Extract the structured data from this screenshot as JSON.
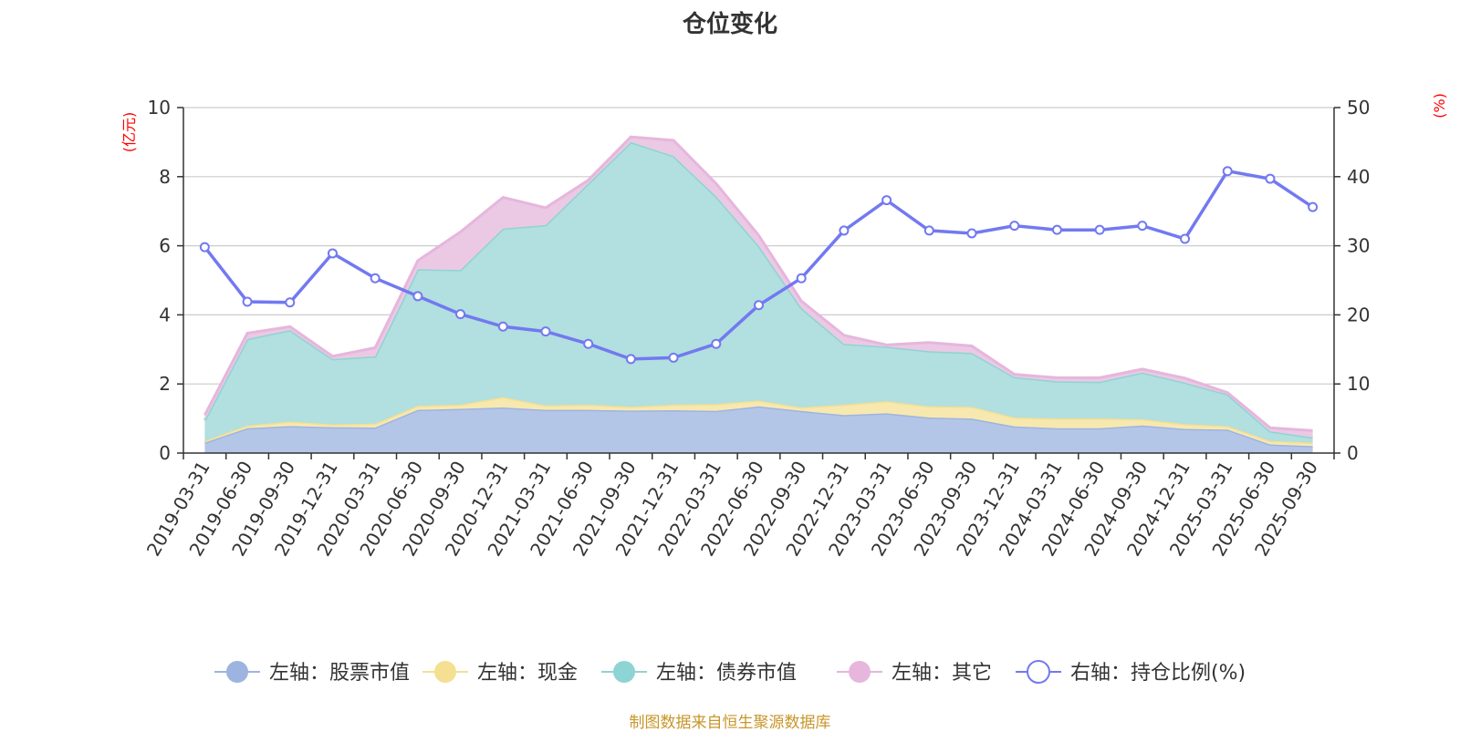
{
  "chart_data": {
    "type": "area",
    "title": "仓位变化",
    "left_axis_unit": "(亿元)",
    "right_axis_unit": "(%)",
    "left_ylim": [
      0,
      10
    ],
    "left_ticks": [
      "0",
      "2",
      "4",
      "6",
      "8",
      "10"
    ],
    "right_ylim": [
      0,
      50
    ],
    "right_ticks": [
      "0",
      "10",
      "20",
      "30",
      "40",
      "50"
    ],
    "grid": true,
    "legend_position": "bottom",
    "categories": [
      "2019-03-31",
      "2019-06-30",
      "2019-09-30",
      "2019-12-31",
      "2020-03-31",
      "2020-06-30",
      "2020-09-30",
      "2020-12-31",
      "2021-03-31",
      "2021-06-30",
      "2021-09-30",
      "2021-12-31",
      "2022-03-31",
      "2022-06-30",
      "2022-09-30",
      "2022-12-31",
      "2023-03-31",
      "2023-06-30",
      "2023-09-30",
      "2023-12-31",
      "2024-03-31",
      "2024-06-30",
      "2024-09-30",
      "2024-12-31",
      "2025-03-31",
      "2025-06-30",
      "2025-09-30"
    ],
    "series": [
      {
        "name": "左轴：股票市值",
        "axis": "left",
        "stacked": true,
        "color": "#9db4e0",
        "fill": "#b4c6e8",
        "values": [
          0.3,
          0.72,
          0.78,
          0.75,
          0.74,
          1.25,
          1.28,
          1.32,
          1.25,
          1.25,
          1.23,
          1.24,
          1.22,
          1.35,
          1.22,
          1.1,
          1.15,
          1.03,
          1.0,
          0.77,
          0.72,
          0.72,
          0.8,
          0.7,
          0.68,
          0.25,
          0.2
        ]
      },
      {
        "name": "左轴：现金",
        "axis": "left",
        "stacked": true,
        "color": "#f5df91",
        "fill": "#f7e8b0",
        "values": [
          0.05,
          0.08,
          0.13,
          0.08,
          0.11,
          0.12,
          0.12,
          0.3,
          0.13,
          0.15,
          0.11,
          0.16,
          0.2,
          0.17,
          0.1,
          0.3,
          0.35,
          0.32,
          0.34,
          0.26,
          0.28,
          0.28,
          0.18,
          0.14,
          0.1,
          0.1,
          0.1
        ]
      },
      {
        "name": "左轴：债券市值",
        "axis": "left",
        "stacked": true,
        "color": "#8ed4d4",
        "fill": "#b2dfdf",
        "values": [
          0.6,
          2.5,
          2.65,
          1.89,
          1.95,
          3.95,
          3.9,
          4.88,
          5.22,
          6.4,
          7.66,
          7.2,
          6.01,
          4.48,
          2.88,
          1.76,
          1.58,
          1.6,
          1.56,
          1.17,
          1.08,
          1.06,
          1.35,
          1.2,
          0.92,
          0.28,
          0.15
        ]
      },
      {
        "name": "左轴：其它",
        "axis": "left",
        "stacked": true,
        "color": "#e6b6dc",
        "fill": "#ebc9e4",
        "values": [
          0.15,
          0.17,
          0.1,
          0.08,
          0.25,
          0.25,
          1.1,
          0.9,
          0.5,
          0.1,
          0.15,
          0.45,
          0.37,
          0.3,
          0.2,
          0.25,
          0.05,
          0.25,
          0.2,
          0.08,
          0.1,
          0.12,
          0.1,
          0.13,
          0.05,
          0.1,
          0.2
        ]
      },
      {
        "name": "右轴：持仓比例(%)",
        "axis": "right",
        "type": "line",
        "color": "#7279f0",
        "values": [
          29.8,
          21.9,
          21.8,
          28.9,
          25.3,
          22.7,
          20.1,
          18.3,
          17.6,
          15.8,
          13.6,
          13.8,
          15.8,
          21.4,
          25.3,
          32.2,
          36.6,
          32.2,
          31.8,
          32.9,
          32.3,
          32.3,
          32.9,
          31.0,
          40.8,
          39.7,
          35.6
        ]
      }
    ]
  },
  "source_note": "制图数据来自恒生聚源数据库"
}
